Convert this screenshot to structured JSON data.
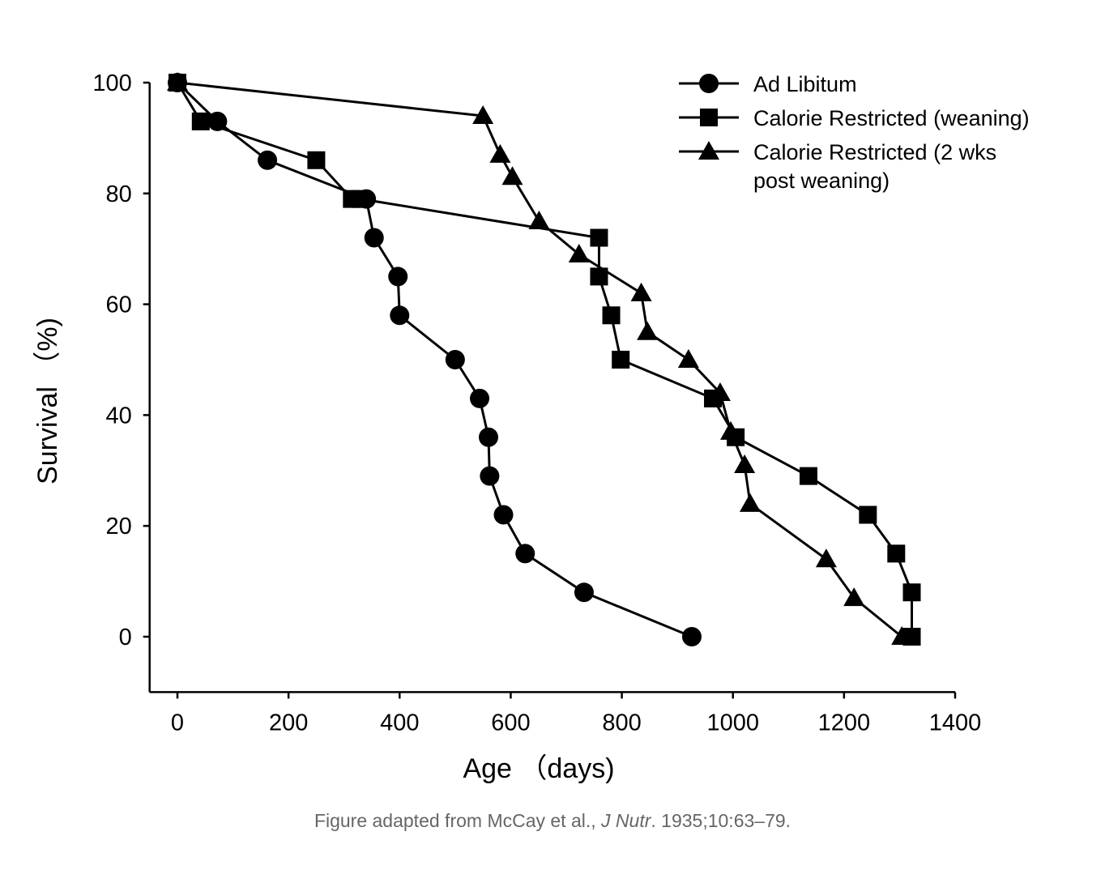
{
  "chart_data": {
    "type": "line",
    "title": "",
    "xlabel": "Age （days)",
    "ylabel": "Survival （%)",
    "xlim": [
      -50,
      1400
    ],
    "ylim": [
      -10,
      100
    ],
    "xticks": [
      0,
      200,
      400,
      600,
      800,
      1000,
      1200,
      1400
    ],
    "yticks": [
      0,
      20,
      40,
      60,
      80,
      100
    ],
    "grid": false,
    "legend_position": "top-right",
    "series": [
      {
        "name": "Ad Libitum",
        "marker": "circle",
        "x": [
          0,
          72,
          162,
          340,
          354,
          397,
          400,
          500,
          544,
          560,
          562,
          587,
          626,
          732,
          926
        ],
        "y": [
          100,
          93,
          86,
          79,
          72,
          65,
          58,
          50,
          43,
          36,
          29,
          22,
          15,
          8,
          0
        ]
      },
      {
        "name": "Calorie Restricted (weaning)",
        "marker": "square",
        "x": [
          0,
          42,
          250,
          314,
          330,
          759,
          759,
          781,
          798,
          964,
          1005,
          1136,
          1243,
          1294,
          1322,
          1322
        ],
        "y": [
          100,
          93,
          86,
          79,
          79,
          72,
          65,
          58,
          50,
          43,
          36,
          29,
          22,
          15,
          8,
          0
        ]
      },
      {
        "name": "Calorie Restricted (2 wks post weaning)",
        "marker": "triangle",
        "x": [
          0,
          550,
          581,
          603,
          651,
          723,
          835,
          846,
          920,
          977,
          996,
          1021,
          1031,
          1168,
          1218,
          1304
        ],
        "y": [
          100,
          94,
          87,
          83,
          75,
          69,
          62,
          55,
          50,
          44,
          37,
          31,
          24,
          14,
          7,
          0
        ]
      }
    ]
  },
  "legend_lines": [
    [
      "Ad Libitum"
    ],
    [
      "Calorie Restricted (weaning)"
    ],
    [
      "Calorie Restricted (2 wks",
      "post weaning)"
    ]
  ],
  "caption": {
    "before": "Figure adapted from McCay et al., ",
    "journal": "J Nutr",
    "after": ". 1935;10:63–79."
  }
}
